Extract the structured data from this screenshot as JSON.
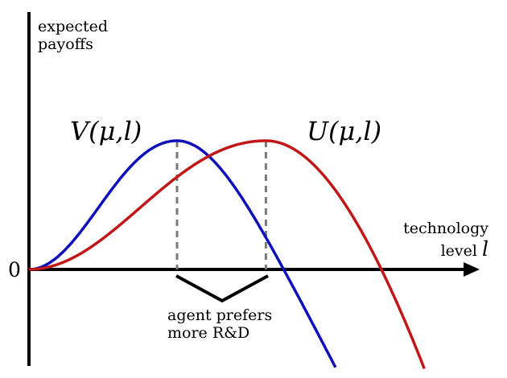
{
  "chart_data": {
    "type": "line",
    "ylabel_line1": "expected",
    "ylabel_line2": "payoffs",
    "xlabel_line1": "technology",
    "xlabel_line2_text": "level",
    "xlabel_line2_var": "l",
    "origin_label": "0",
    "series": [
      {
        "name": "V(μ,l)",
        "color": "#1010b8",
        "peak_x": 1.0,
        "peak_y": 1.0,
        "zero_x": 1.72
      },
      {
        "name": "U(μ,l)",
        "color": "#c01818",
        "peak_x": 1.6,
        "peak_y": 1.0,
        "zero_x": 2.38
      }
    ],
    "annotation": {
      "line1": "agent prefers",
      "line2": "more R&D"
    },
    "colors": {
      "axis": "#000000",
      "guide": "#7a7a7a"
    }
  }
}
